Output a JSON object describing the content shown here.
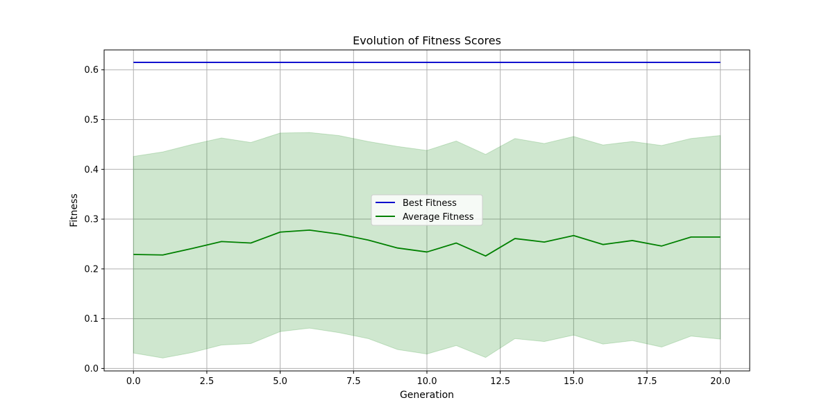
{
  "chart_data": {
    "type": "line",
    "title": "Evolution of Fitness Scores",
    "xlabel": "Generation",
    "ylabel": "Fitness",
    "xlim": [
      -1,
      21
    ],
    "ylim": [
      -0.005,
      0.64
    ],
    "xticks": [
      0.0,
      2.5,
      5.0,
      7.5,
      10.0,
      12.5,
      15.0,
      17.5,
      20.0
    ],
    "xtick_labels": [
      "0.0",
      "2.5",
      "5.0",
      "7.5",
      "10.0",
      "12.5",
      "15.0",
      "17.5",
      "20.0"
    ],
    "yticks": [
      0.0,
      0.1,
      0.2,
      0.3,
      0.4,
      0.5,
      0.6
    ],
    "ytick_labels": [
      "0.0",
      "0.1",
      "0.2",
      "0.3",
      "0.4",
      "0.5",
      "0.6"
    ],
    "grid": true,
    "legend_position": "center",
    "x": [
      0,
      1,
      2,
      3,
      4,
      5,
      6,
      7,
      8,
      9,
      10,
      11,
      12,
      13,
      14,
      15,
      16,
      17,
      18,
      19,
      20
    ],
    "series": [
      {
        "name": "Best Fitness",
        "color": "#0000cc",
        "values": [
          0.615,
          0.615,
          0.615,
          0.615,
          0.615,
          0.615,
          0.615,
          0.615,
          0.615,
          0.615,
          0.615,
          0.615,
          0.615,
          0.615,
          0.615,
          0.615,
          0.615,
          0.615,
          0.615,
          0.615,
          0.615
        ]
      },
      {
        "name": "Average Fitness",
        "color": "#008000",
        "values": [
          0.229,
          0.228,
          0.241,
          0.255,
          0.252,
          0.274,
          0.278,
          0.27,
          0.258,
          0.242,
          0.234,
          0.252,
          0.226,
          0.261,
          0.254,
          0.267,
          0.249,
          0.257,
          0.246,
          0.264,
          0.264
        ]
      }
    ],
    "band": {
      "color": "#008000",
      "opacity": 0.19,
      "upper": [
        0.426,
        0.435,
        0.45,
        0.463,
        0.454,
        0.473,
        0.474,
        0.468,
        0.456,
        0.446,
        0.438,
        0.457,
        0.43,
        0.462,
        0.452,
        0.466,
        0.449,
        0.456,
        0.448,
        0.462,
        0.468
      ],
      "lower": [
        0.031,
        0.021,
        0.032,
        0.047,
        0.05,
        0.074,
        0.081,
        0.072,
        0.06,
        0.038,
        0.029,
        0.046,
        0.022,
        0.06,
        0.054,
        0.067,
        0.049,
        0.056,
        0.043,
        0.065,
        0.059
      ]
    }
  }
}
